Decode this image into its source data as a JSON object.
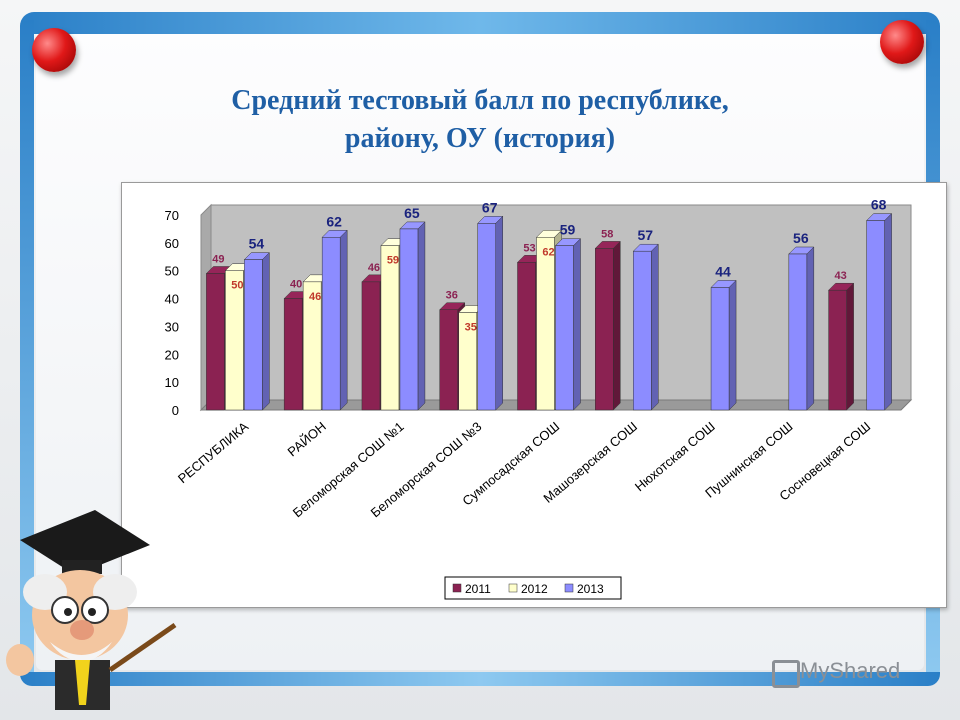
{
  "slide": {
    "title_line1": "Средний тестовый балл по республике,",
    "title_line2": "району, ОУ (история)",
    "brand": "MyShared"
  },
  "colors": {
    "accent": "#2a7fc7",
    "series_2011": "#8b2252",
    "series_2012": "#ffffcc",
    "series_2013": "#8c8cff",
    "plot_back": "#c0c0c0"
  },
  "chart_data": {
    "type": "bar",
    "title": "",
    "xlabel": "",
    "ylabel": "",
    "ylim": [
      0,
      70
    ],
    "yticks": [
      0,
      10,
      20,
      30,
      40,
      50,
      60,
      70
    ],
    "grid": false,
    "legend_position": "bottom",
    "categories": [
      "РЕСПУБЛИКА",
      "РАЙОН",
      "Беломорская СОШ №1",
      "Беломорская СОШ №3",
      "Сумпосадская СОШ",
      "Машозерская СОШ",
      "Нюхотская СОШ",
      "Пушнинская СОШ",
      "Сосновецкая СОШ"
    ],
    "series": [
      {
        "name": "2011",
        "color": "#8b2252",
        "label_color": "#8b2252",
        "values": [
          49,
          40,
          46,
          36,
          53,
          58,
          null,
          null,
          43
        ]
      },
      {
        "name": "2012",
        "color": "#ffffcc",
        "label_color": "#c0392b",
        "values": [
          50,
          46,
          59,
          35,
          62,
          null,
          null,
          null,
          null
        ]
      },
      {
        "name": "2013",
        "color": "#8c8cff",
        "label_color": "#1a237e",
        "values": [
          54,
          62,
          65,
          67,
          59,
          57,
          44,
          56,
          68
        ]
      }
    ]
  }
}
